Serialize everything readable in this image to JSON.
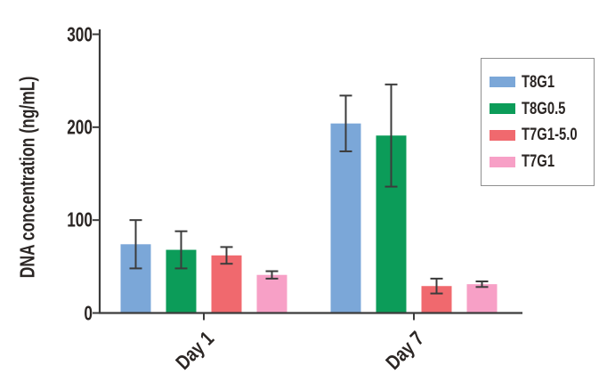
{
  "chart_data": {
    "type": "bar",
    "title": "",
    "ylabel": "DNA concentration (ng/mL)",
    "xlabel": "",
    "categories": [
      "Day 1",
      "Day 7"
    ],
    "series": [
      {
        "name": "T8G1",
        "color": "#7BA7D8",
        "values": [
          74,
          204
        ],
        "errors": [
          26,
          30
        ]
      },
      {
        "name": "T8G0.5",
        "color": "#0C9C59",
        "values": [
          68,
          191
        ],
        "errors": [
          20,
          55
        ]
      },
      {
        "name": "T7G1-5.0",
        "color": "#F0696E",
        "values": [
          62,
          29
        ],
        "errors": [
          9,
          8
        ]
      },
      {
        "name": "T7G1",
        "color": "#F7A0C6",
        "values": [
          41,
          31
        ],
        "errors": [
          4,
          3
        ]
      }
    ],
    "ylim": [
      0,
      300
    ],
    "yticks": [
      0,
      100,
      200,
      300
    ],
    "grid": false,
    "error_bars": true,
    "legend_position": "upper right",
    "axis_color": "#3C3C3C",
    "text_color": "#2B2624",
    "background_color": "#FFFFFF"
  }
}
